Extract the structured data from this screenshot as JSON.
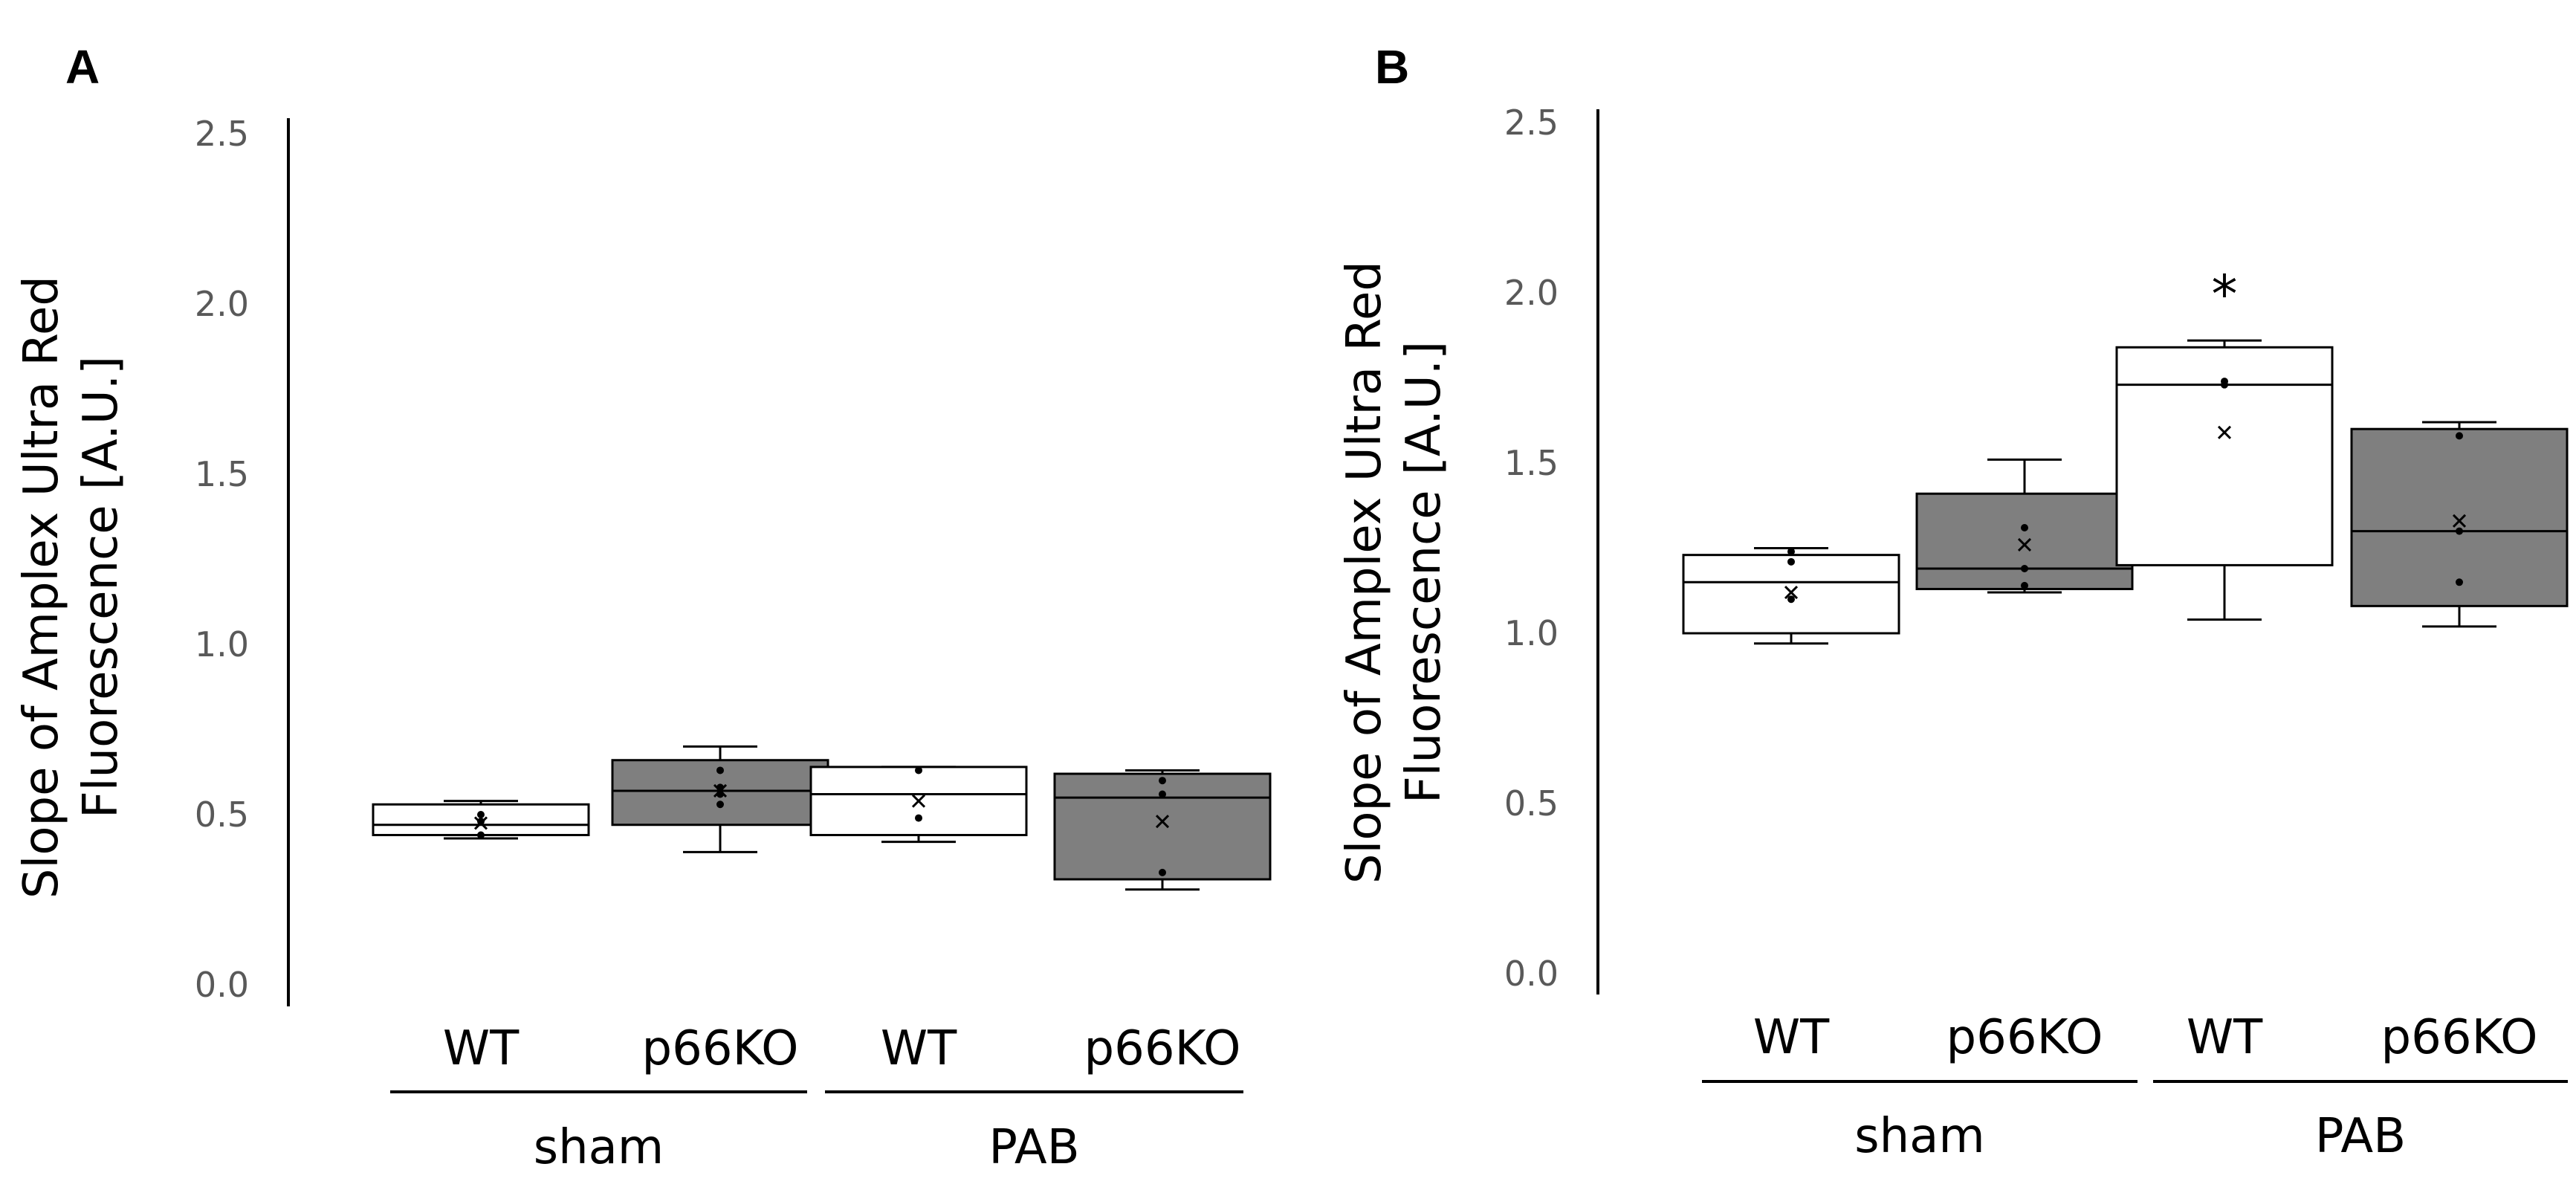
{
  "chart_data": [
    {
      "panel": "A",
      "type": "box",
      "ylabel": [
        "Slope of Amplex Ultra Red",
        "Fluorescence [A.U.]"
      ],
      "ylim": [
        0.0,
        2.5
      ],
      "yticks": [
        0.0,
        0.5,
        1.0,
        1.5,
        2.0,
        2.5
      ],
      "ytick_labels": [
        "0.0",
        "0.5",
        "1.0",
        "1.5",
        "2.0",
        "2.5"
      ],
      "groups": [
        {
          "label": "sham",
          "categories": [
            "WT",
            "p66KO"
          ]
        },
        {
          "label": "PAB",
          "categories": [
            "WT",
            "p66KO"
          ]
        }
      ],
      "boxes": [
        {
          "genotype": "WT",
          "group": "sham",
          "fill": "#ffffff",
          "min": 0.43,
          "q1": 0.44,
          "median": 0.47,
          "q3": 0.53,
          "max": 0.54,
          "mean": 0.475,
          "points": [
            0.44,
            0.48,
            0.5
          ],
          "sig": ""
        },
        {
          "genotype": "p66KO",
          "group": "sham",
          "fill": "#7f7f7f",
          "min": 0.39,
          "q1": 0.47,
          "median": 0.57,
          "q3": 0.66,
          "max": 0.7,
          "mean": 0.57,
          "points": [
            0.53,
            0.56,
            0.58,
            0.63
          ],
          "sig": ""
        },
        {
          "genotype": "WT",
          "group": "PAB",
          "fill": "#ffffff",
          "min": 0.42,
          "q1": 0.44,
          "median": 0.56,
          "q3": 0.64,
          "max": 0.64,
          "mean": 0.54,
          "points": [
            0.49,
            0.63
          ],
          "sig": ""
        },
        {
          "genotype": "p66KO",
          "group": "PAB",
          "fill": "#7f7f7f",
          "min": 0.28,
          "q1": 0.31,
          "median": 0.55,
          "q3": 0.62,
          "max": 0.63,
          "mean": 0.48,
          "points": [
            0.33,
            0.56,
            0.6
          ],
          "sig": ""
        }
      ]
    },
    {
      "panel": "B",
      "type": "box",
      "ylabel": [
        "Slope of Amplex Ultra Red",
        "Fluorescence [A.U.]"
      ],
      "ylim": [
        0.0,
        2.5
      ],
      "yticks": [
        0.0,
        0.5,
        1.0,
        1.5,
        2.0,
        2.5
      ],
      "ytick_labels": [
        "0.0",
        "0.5",
        "1.0",
        "1.5",
        "2.0",
        "2.5"
      ],
      "groups": [
        {
          "label": "sham",
          "categories": [
            "WT",
            "p66KO"
          ]
        },
        {
          "label": "PAB",
          "categories": [
            "WT",
            "p66KO"
          ]
        }
      ],
      "boxes": [
        {
          "genotype": "WT",
          "group": "sham",
          "fill": "#ffffff",
          "min": 0.97,
          "q1": 1.0,
          "median": 1.15,
          "q3": 1.23,
          "max": 1.25,
          "mean": 1.12,
          "points": [
            1.1,
            1.21,
            1.24
          ],
          "sig": ""
        },
        {
          "genotype": "p66KO",
          "group": "sham",
          "fill": "#7f7f7f",
          "min": 1.12,
          "q1": 1.13,
          "median": 1.19,
          "q3": 1.41,
          "max": 1.51,
          "mean": 1.26,
          "points": [
            1.14,
            1.19,
            1.31
          ],
          "sig": ""
        },
        {
          "genotype": "WT",
          "group": "PAB",
          "fill": "#ffffff",
          "min": 1.04,
          "q1": 1.2,
          "median": 1.73,
          "q3": 1.84,
          "max": 1.86,
          "mean": 1.59,
          "points": [
            1.73,
            1.74
          ],
          "sig": "*"
        },
        {
          "genotype": "p66KO",
          "group": "PAB",
          "fill": "#7f7f7f",
          "min": 1.02,
          "q1": 1.08,
          "median": 1.3,
          "q3": 1.6,
          "max": 1.62,
          "mean": 1.33,
          "points": [
            1.15,
            1.3,
            1.58
          ],
          "sig": ""
        }
      ]
    }
  ]
}
